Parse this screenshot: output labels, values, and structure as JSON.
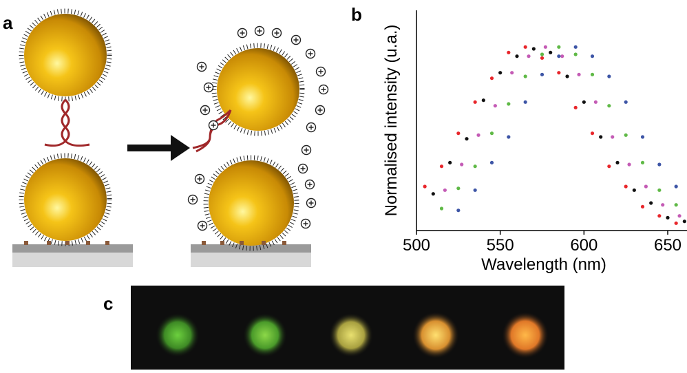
{
  "panels": {
    "a": "a",
    "b": "b",
    "c": "c"
  },
  "chart_data": {
    "type": "scatter",
    "x_label": "Wavelength (nm)",
    "y_label": "Normalised intensity (u.a.)",
    "xlim": [
      500,
      661.5
    ],
    "xticks": [
      500,
      550,
      600,
      650
    ],
    "ylim": [
      0,
      1.2
    ],
    "series": [
      {
        "color": "#e8262b",
        "x": [
          505,
          515,
          525,
          535,
          545,
          555,
          565,
          575,
          585,
          595,
          605,
          615,
          625,
          635,
          645,
          655
        ],
        "values": [
          0.24,
          0.35,
          0.53,
          0.7,
          0.83,
          0.97,
          1.0,
          0.94,
          0.86,
          0.67,
          0.53,
          0.35,
          0.24,
          0.13,
          0.08,
          0.04
        ]
      },
      {
        "color": "#111111",
        "x": [
          510,
          520,
          530,
          540,
          550,
          560,
          570,
          580,
          590,
          600,
          610,
          620,
          630,
          640,
          650,
          660
        ],
        "values": [
          0.2,
          0.37,
          0.5,
          0.71,
          0.86,
          0.95,
          0.99,
          0.97,
          0.84,
          0.7,
          0.51,
          0.37,
          0.22,
          0.15,
          0.07,
          0.05
        ]
      },
      {
        "color": "#c45bb5",
        "x": [
          517,
          527,
          537,
          547,
          557,
          567,
          577,
          587,
          597,
          607,
          617,
          627,
          637,
          647,
          657
        ],
        "values": [
          0.22,
          0.36,
          0.52,
          0.68,
          0.86,
          0.95,
          1.0,
          0.95,
          0.85,
          0.7,
          0.51,
          0.36,
          0.24,
          0.14,
          0.08
        ]
      },
      {
        "color": "#5fb946",
        "x": [
          515,
          525,
          535,
          545,
          555,
          565,
          575,
          585,
          595,
          605,
          615,
          625,
          635,
          645,
          655
        ],
        "values": [
          0.12,
          0.23,
          0.35,
          0.53,
          0.69,
          0.84,
          0.96,
          1.0,
          0.96,
          0.85,
          0.68,
          0.52,
          0.37,
          0.22,
          0.14
        ]
      },
      {
        "color": "#3d55a6",
        "x": [
          525,
          535,
          545,
          555,
          565,
          575,
          585,
          595,
          605,
          615,
          625,
          635,
          645,
          655
        ],
        "values": [
          0.11,
          0.22,
          0.37,
          0.51,
          0.7,
          0.85,
          0.95,
          1.0,
          0.95,
          0.84,
          0.7,
          0.51,
          0.36,
          0.24
        ]
      }
    ]
  }
}
